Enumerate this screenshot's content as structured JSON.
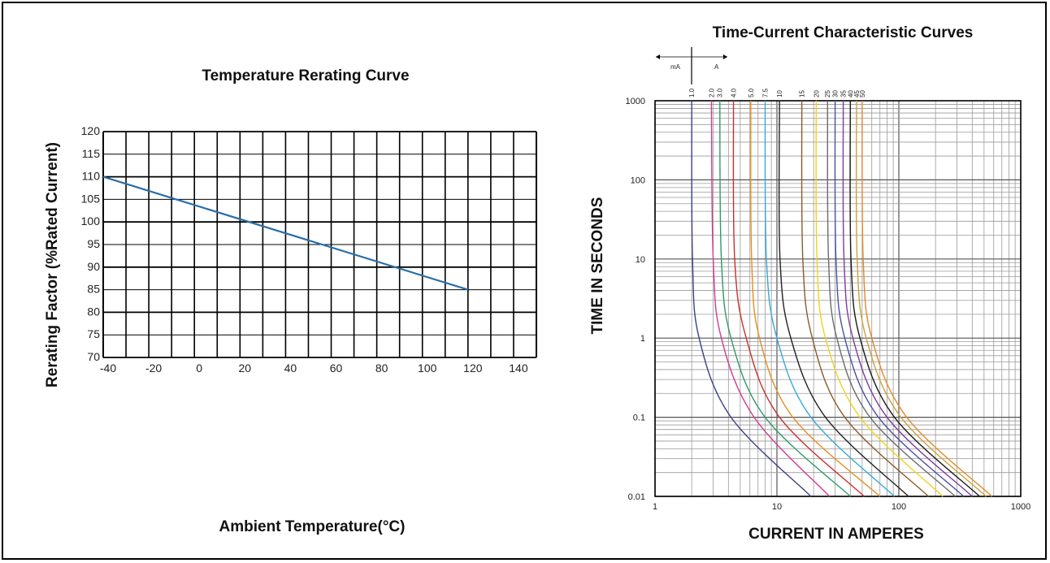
{
  "chart_data": [
    {
      "type": "line",
      "title": "Temperature Rerating Curve",
      "xlabel": "Ambient Temperature(°C)",
      "ylabel": "Rerating Factor (%Rated Current)",
      "xlim": [
        -40,
        150
      ],
      "ylim": [
        70,
        120
      ],
      "x_ticks": [
        "-40",
        "-20",
        "0",
        "20",
        "40",
        "60",
        "80",
        "100",
        "120",
        "140"
      ],
      "y_ticks": [
        "70",
        "75",
        "80",
        "85",
        "90",
        "95",
        "100",
        "105",
        "110",
        "115",
        "120"
      ],
      "grid": true,
      "series": [
        {
          "x": [
            -40,
            120
          ],
          "y": [
            110,
            85
          ],
          "color": "#2a6fa8"
        }
      ]
    },
    {
      "type": "line",
      "title": "Time-Current Characteristic Curves",
      "xlabel": "CURRENT IN AMPERES",
      "ylabel": "TIME IN SECONDS",
      "xscale": "log",
      "yscale": "log",
      "xlim": [
        1,
        1000
      ],
      "ylim": [
        0.01,
        1000
      ],
      "x_ticks": [
        "1",
        "10",
        "100",
        "1000"
      ],
      "y_ticks": [
        "0.01",
        "0.1",
        "1",
        "10",
        "100",
        "1000"
      ],
      "grid": true,
      "unit_marker": {
        "left": "mA",
        "right": "A"
      },
      "ratings": [
        "1.0",
        "2.0",
        "3.0",
        "4.0",
        "5.0",
        "7.5",
        "10",
        "15",
        "20",
        "25",
        "30",
        "35",
        "40",
        "45",
        "50"
      ],
      "series": [
        {
          "name": "1.0",
          "color": "#3d3f86",
          "points": [
            [
              2.0,
              1000
            ],
            [
              2.03,
              10
            ],
            [
              2.3,
              1
            ],
            [
              4.2,
              0.1
            ],
            [
              19,
              0.01
            ]
          ]
        },
        {
          "name": "2.0",
          "color": "#d23a8c",
          "points": [
            [
              2.9,
              1000
            ],
            [
              3.0,
              10
            ],
            [
              3.5,
              1
            ],
            [
              6.5,
              0.1
            ],
            [
              27,
              0.01
            ]
          ]
        },
        {
          "name": "3.0",
          "color": "#2f9a6b",
          "points": [
            [
              3.4,
              1000
            ],
            [
              3.5,
              10
            ],
            [
              4.2,
              1
            ],
            [
              8.0,
              0.1
            ],
            [
              40,
              0.01
            ]
          ]
        },
        {
          "name": "4.0",
          "color": "#c8302b",
          "points": [
            [
              4.4,
              1000
            ],
            [
              4.5,
              10
            ],
            [
              5.6,
              1
            ],
            [
              10.5,
              0.1
            ],
            [
              52,
              0.01
            ]
          ]
        },
        {
          "name": "5.0",
          "color": "#e58e1e",
          "points": [
            [
              6.1,
              1000
            ],
            [
              6.2,
              10
            ],
            [
              7.2,
              1
            ],
            [
              13.5,
              0.1
            ],
            [
              70,
              0.01
            ]
          ]
        },
        {
          "name": "7.5",
          "color": "#35a9d6",
          "points": [
            [
              8.0,
              1000
            ],
            [
              8.2,
              10
            ],
            [
              10.0,
              1
            ],
            [
              19,
              0.1
            ],
            [
              92,
              0.01
            ]
          ]
        },
        {
          "name": "10",
          "color": "#222222",
          "points": [
            [
              10.5,
              1000
            ],
            [
              10.6,
              10
            ],
            [
              13.0,
              1
            ],
            [
              25,
              0.1
            ],
            [
              120,
              0.01
            ]
          ]
        },
        {
          "name": "15",
          "color": "#8b5a2b",
          "points": [
            [
              16,
              1000
            ],
            [
              16.3,
              10
            ],
            [
              19.5,
              1
            ],
            [
              36,
              0.1
            ],
            [
              175,
              0.01
            ]
          ]
        },
        {
          "name": "20",
          "color": "#f2d21a",
          "points": [
            [
              21,
              1000
            ],
            [
              21.3,
              10
            ],
            [
              25,
              1
            ],
            [
              48,
              0.1
            ],
            [
              230,
              0.01
            ]
          ]
        },
        {
          "name": "25",
          "color": "#6b6b6b",
          "points": [
            [
              26,
              1000
            ],
            [
              26.5,
              10
            ],
            [
              31,
              1
            ],
            [
              58,
              0.1
            ],
            [
              290,
              0.01
            ]
          ]
        },
        {
          "name": "30",
          "color": "#4b4ea8",
          "points": [
            [
              30,
              1000
            ],
            [
              30.5,
              10
            ],
            [
              36,
              1
            ],
            [
              68,
              0.1
            ],
            [
              340,
              0.01
            ]
          ]
        },
        {
          "name": "35",
          "color": "#7d3b9c",
          "points": [
            [
              35,
              1000
            ],
            [
              35.5,
              10
            ],
            [
              42,
              1
            ],
            [
              80,
              0.1
            ],
            [
              400,
              0.01
            ]
          ]
        },
        {
          "name": "40",
          "color": "#1a1a1a",
          "points": [
            [
              40,
              1000
            ],
            [
              40.5,
              10
            ],
            [
              48,
              1
            ],
            [
              92,
              0.1
            ],
            [
              460,
              0.01
            ]
          ]
        },
        {
          "name": "45",
          "color": "#c9a43a",
          "points": [
            [
              45,
              1000
            ],
            [
              45.5,
              10
            ],
            [
              54,
              1
            ],
            [
              104,
              0.1
            ],
            [
              520,
              0.01
            ]
          ]
        },
        {
          "name": "50",
          "color": "#e08a2a",
          "points": [
            [
              50,
              1000
            ],
            [
              51,
              10
            ],
            [
              60,
              1
            ],
            [
              116,
              0.1
            ],
            [
              580,
              0.01
            ]
          ]
        }
      ]
    }
  ]
}
